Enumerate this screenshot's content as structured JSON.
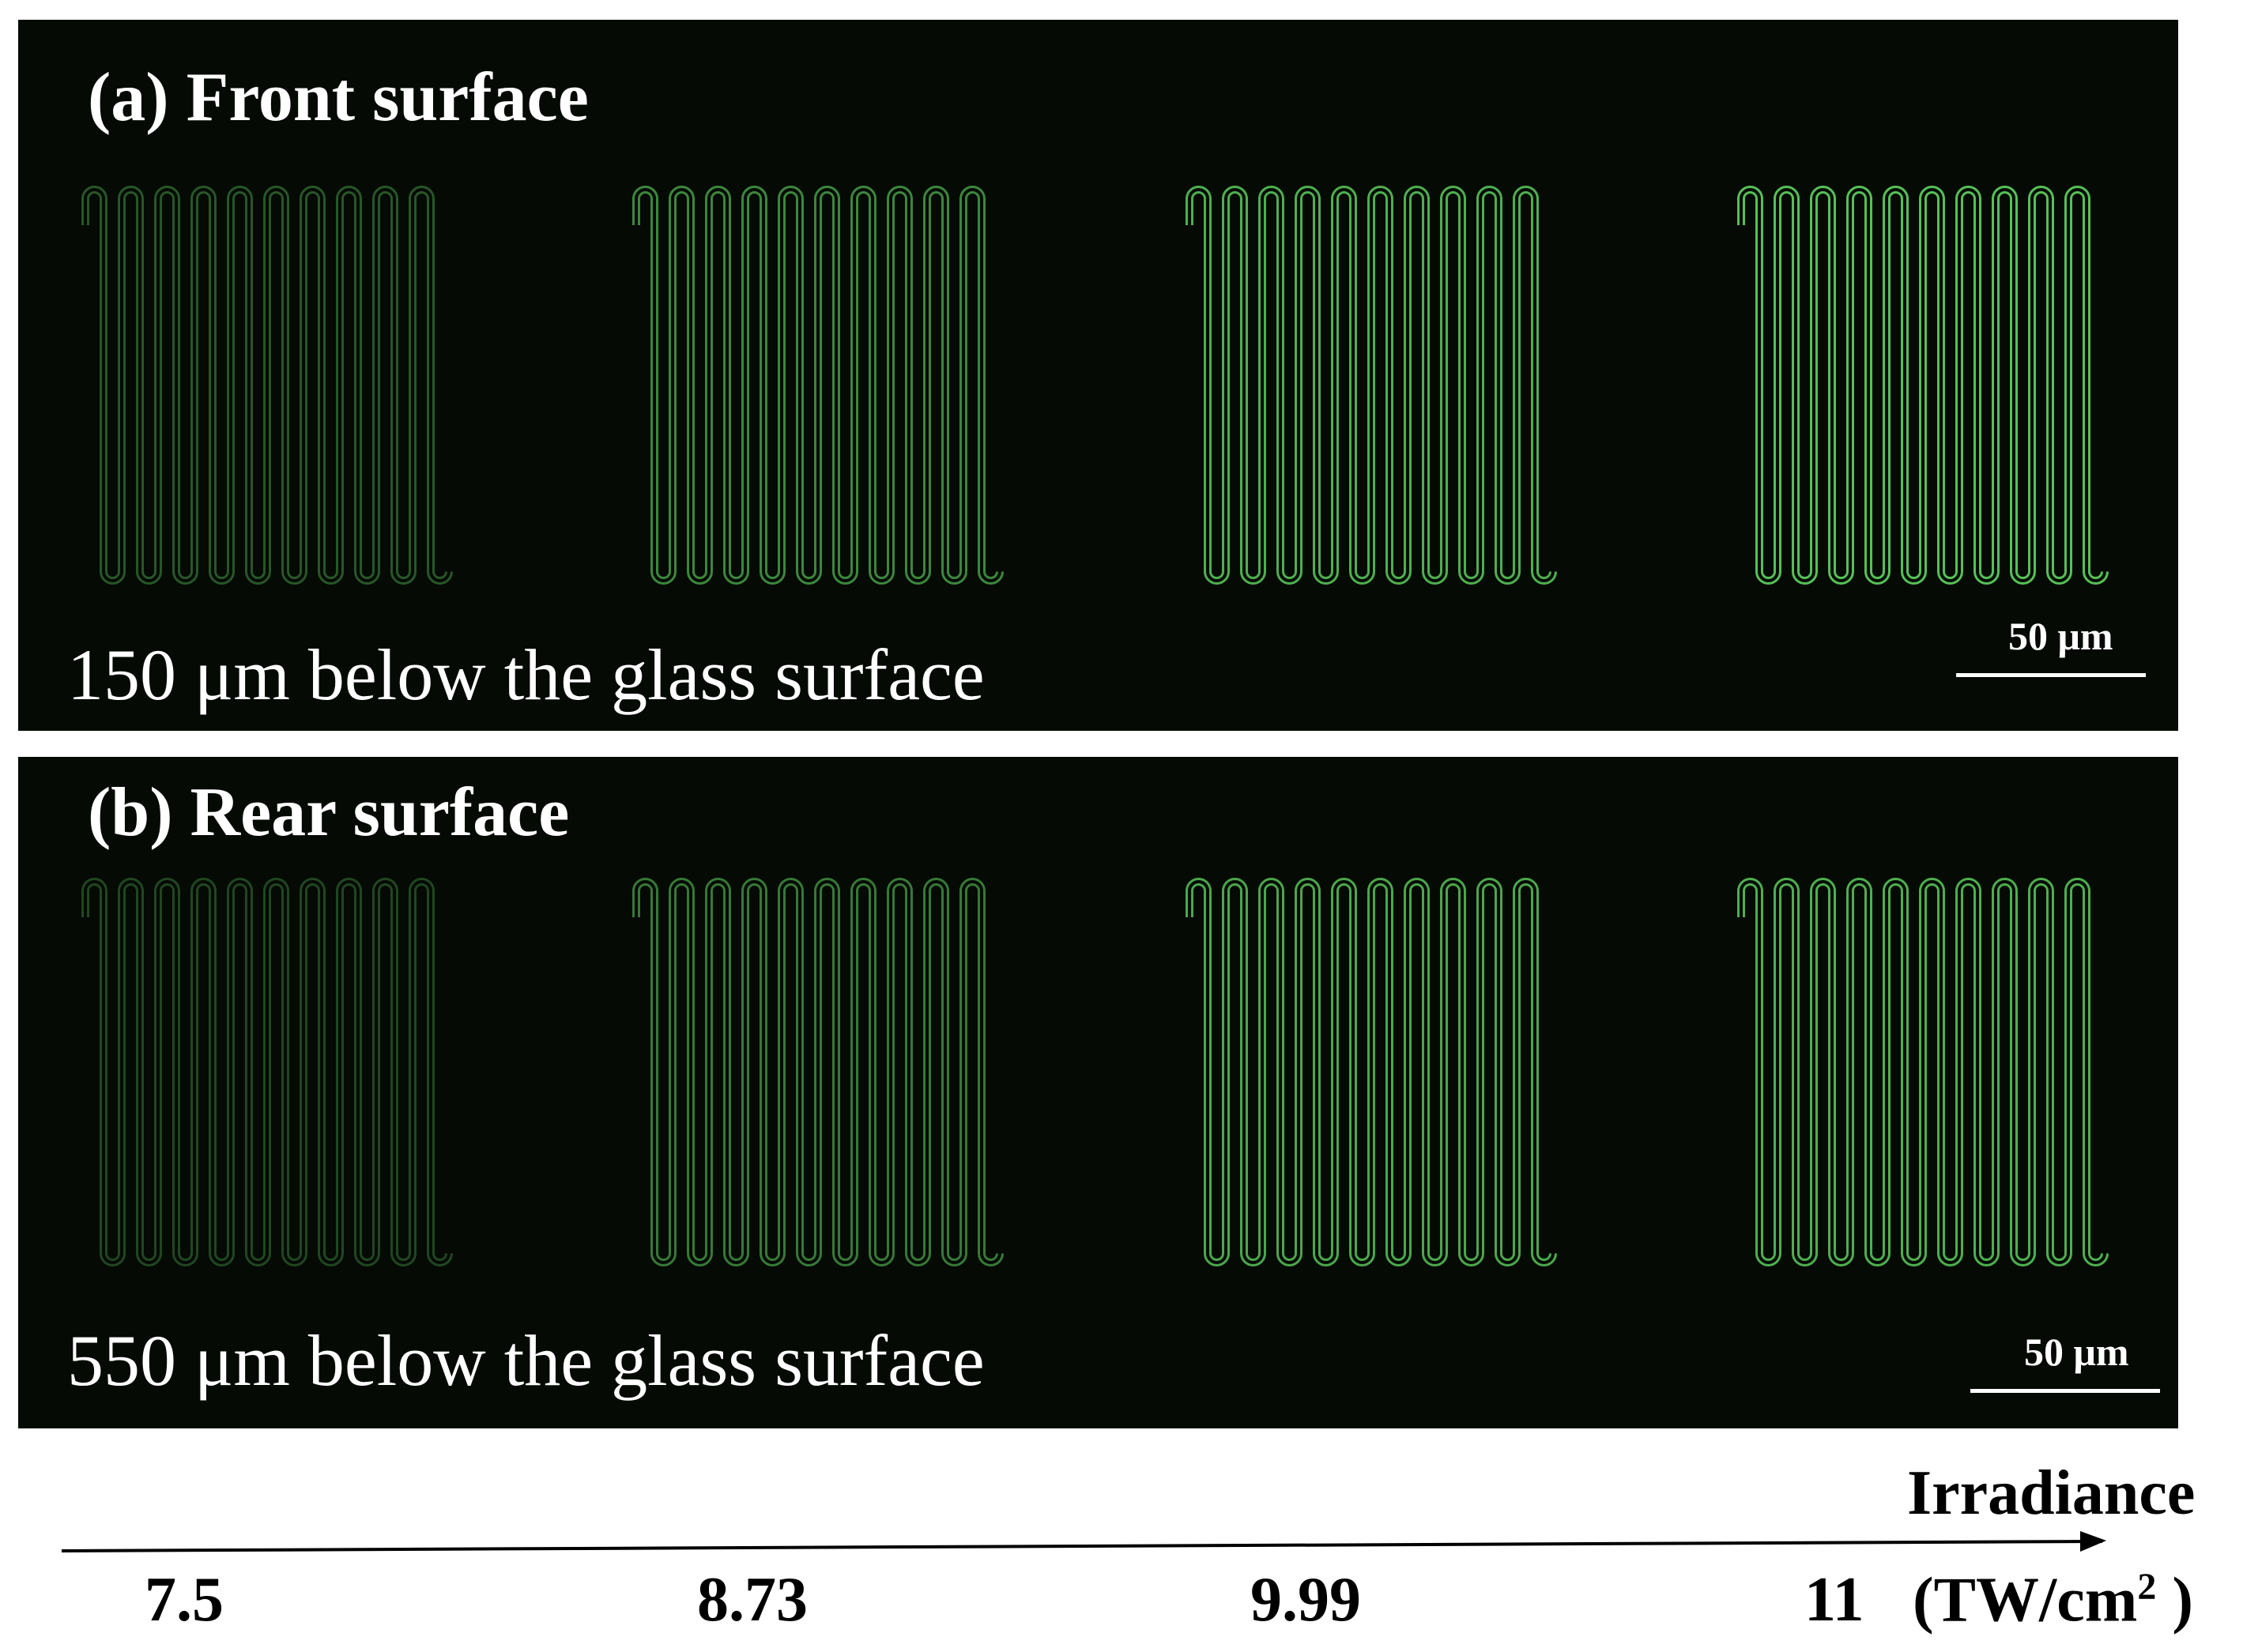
{
  "panels": [
    {
      "id": "a",
      "title": "(a) Front surface",
      "depth_label": "150 μm below the glass surface",
      "scale_bar_label": "50 μm",
      "pattern_brightness": [
        0.38,
        0.62,
        0.82,
        0.9
      ]
    },
    {
      "id": "b",
      "title": "(b) Rear surface",
      "depth_label": "550 μm below the glass surface",
      "scale_bar_label": "50 μm",
      "pattern_brightness": [
        0.3,
        0.55,
        0.78,
        0.82
      ]
    }
  ],
  "axis": {
    "title": "Irradiance",
    "ticks": [
      "7.5",
      "8.73",
      "9.99",
      "11"
    ],
    "unit_prefix": "(TW/cm",
    "unit_sup": "2",
    "unit_suffix": " )"
  },
  "colors": {
    "background": "#050a05",
    "pattern": "#5fd45f"
  }
}
